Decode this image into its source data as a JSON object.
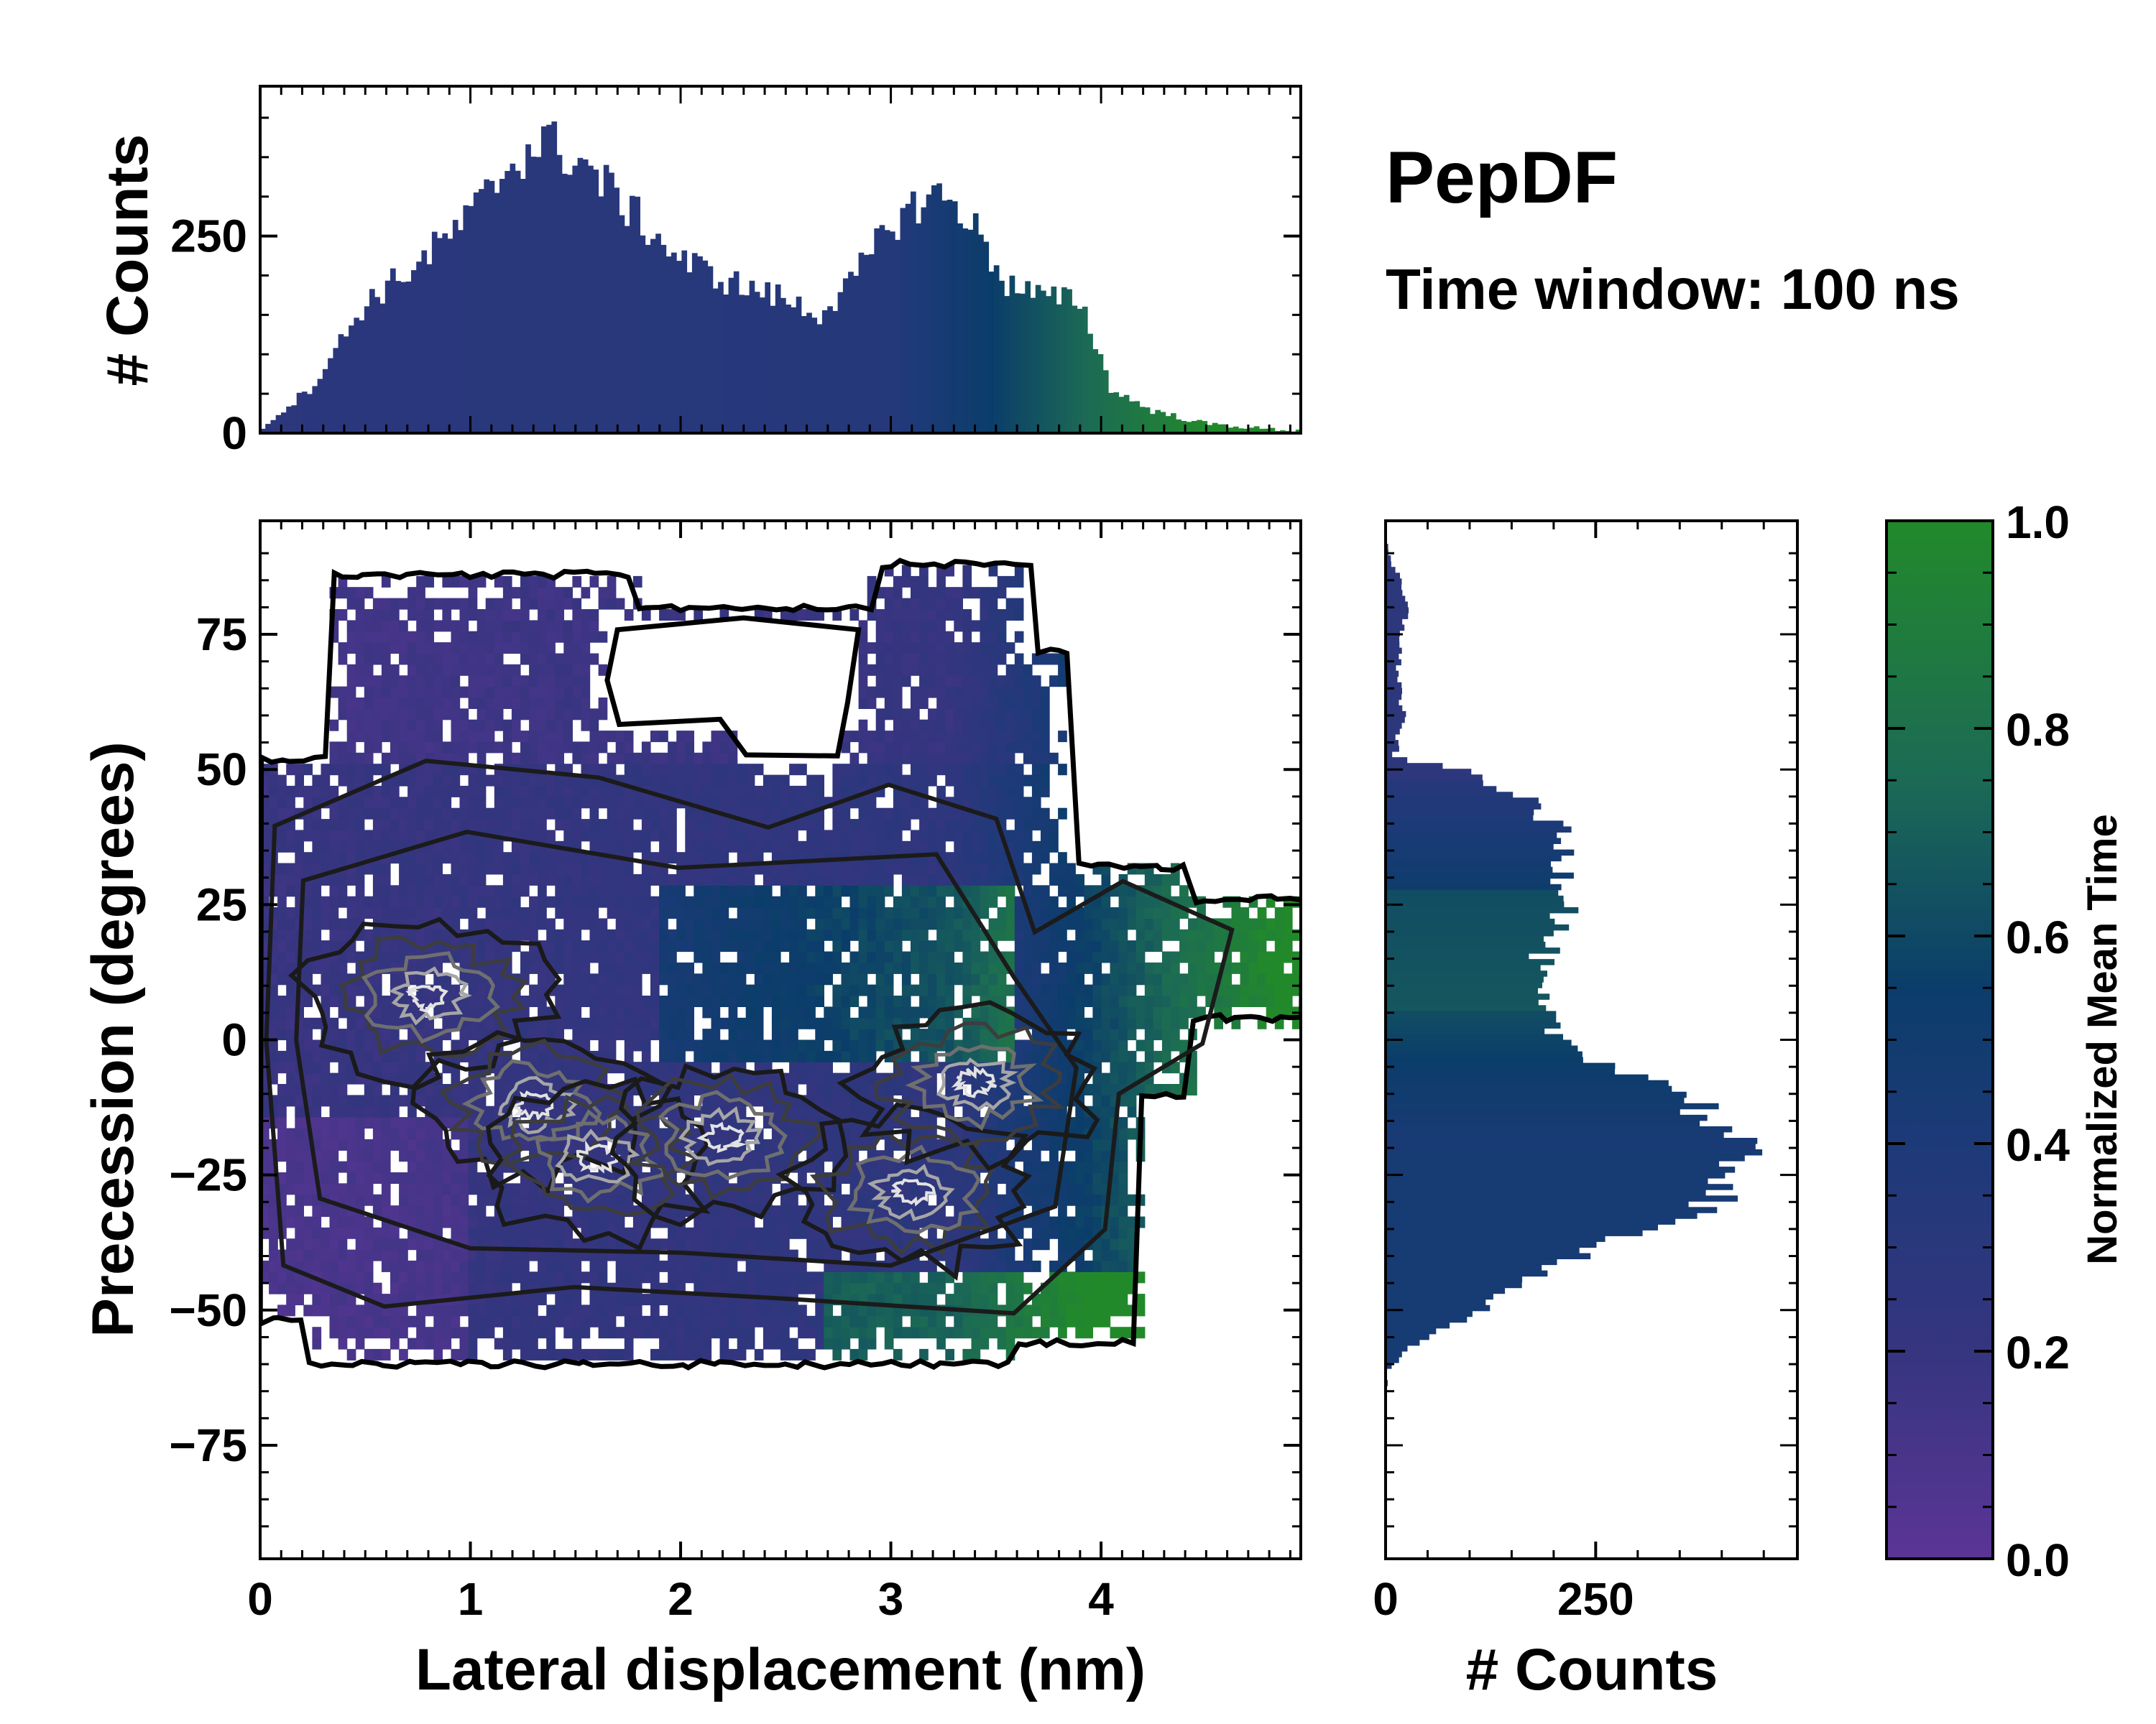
{
  "chart_data": [
    {
      "type": "heatmap",
      "name": "joint-histogram",
      "xlabel": "Lateral displacement (nm)",
      "ylabel": "Precession (degrees)",
      "xlim": [
        0,
        4.95
      ],
      "ylim": [
        -96,
        96
      ],
      "xticks": [
        0,
        1,
        2,
        3,
        4
      ],
      "yticks": [
        -75,
        -50,
        -25,
        0,
        25,
        50,
        75
      ],
      "xtick_labels": [
        "0",
        "1",
        "2",
        "3",
        "4"
      ],
      "ytick_labels": [
        "−75",
        "−50",
        "−25",
        "0",
        "25",
        "50",
        "75"
      ],
      "color_value": "Normalized Mean Time",
      "color_trend": "blue/purple for x < 3 nm, green for x > 3.5 nm",
      "density_peaks": [
        {
          "x": 0.8,
          "y": 8
        },
        {
          "x": 1.3,
          "y": -12
        },
        {
          "x": 1.6,
          "y": -22
        },
        {
          "x": 2.2,
          "y": -18
        },
        {
          "x": 3.1,
          "y": -28
        },
        {
          "x": 3.4,
          "y": -8
        }
      ]
    },
    {
      "type": "bar",
      "name": "x-marginal-histogram",
      "ylabel": "# Counts",
      "xlim": [
        0,
        4.95
      ],
      "ylim": [
        0,
        440
      ],
      "yticks": [
        0,
        250
      ],
      "ytick_labels": [
        "0",
        "250"
      ],
      "series": [
        {
          "name": "counts",
          "x": [
            0.0,
            0.25,
            0.5,
            0.75,
            1.0,
            1.2,
            1.35,
            1.55,
            1.75,
            2.0,
            2.25,
            2.5,
            2.65,
            2.8,
            3.0,
            3.2,
            3.35,
            3.55,
            3.75,
            3.9,
            4.05,
            4.25,
            4.5,
            4.8,
            4.95
          ],
          "values": [
            5,
            60,
            165,
            215,
            275,
            345,
            372,
            340,
            285,
            220,
            190,
            170,
            150,
            185,
            265,
            305,
            282,
            190,
            170,
            170,
            55,
            28,
            12,
            5,
            3
          ]
        }
      ]
    },
    {
      "type": "bar",
      "name": "y-marginal-histogram",
      "orientation": "horizontal",
      "xlabel": "# Counts",
      "xlim": [
        0,
        490
      ],
      "xticks": [
        0,
        250
      ],
      "xtick_labels": [
        "0",
        "250"
      ],
      "series": [
        {
          "name": "counts",
          "y": [
            -62,
            -58,
            -55,
            -50,
            -45,
            -40,
            -35,
            -30,
            -25,
            -20,
            -15,
            -10,
            -5,
            0,
            5,
            10,
            15,
            20,
            25,
            30,
            35,
            40,
            45,
            50,
            52,
            60,
            70,
            80,
            90
          ],
          "values": [
            0,
            20,
            45,
            110,
            160,
            235,
            310,
            385,
            425,
            415,
            385,
            365,
            275,
            210,
            185,
            175,
            185,
            200,
            225,
            215,
            210,
            200,
            160,
            95,
            10,
            20,
            15,
            25,
            5
          ]
        }
      ]
    },
    {
      "type": "heatmap",
      "name": "colorbar",
      "label": "Normalized Mean Time",
      "range": [
        0.0,
        1.0
      ],
      "ticks": [
        0.0,
        0.2,
        0.4,
        0.6,
        0.8,
        1.0
      ],
      "tick_labels": [
        "0.0",
        "0.2",
        "0.4",
        "0.6",
        "0.8",
        "1.0"
      ],
      "colormap": [
        "#5b3596",
        "#36357f",
        "#1d3a78",
        "#0b3d6a",
        "#1c6a55",
        "#22892b"
      ]
    }
  ],
  "title": "PepDF",
  "subtitle": "Time window: 100 ns"
}
